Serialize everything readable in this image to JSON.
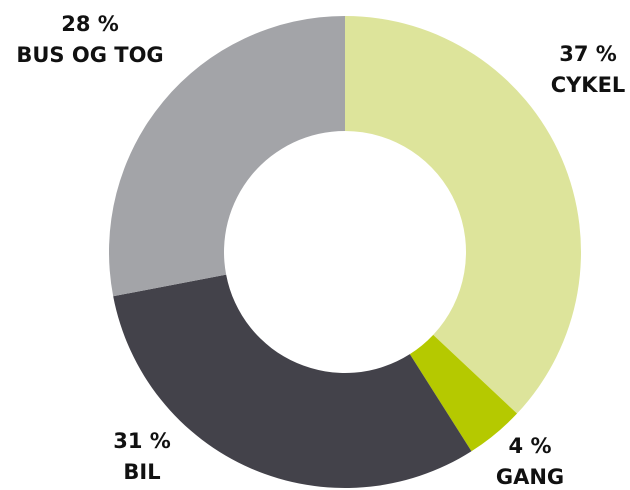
{
  "chart_data": {
    "type": "donut",
    "categories": [
      "CYKEL",
      "GANG",
      "BIL",
      "BUS OG TOG"
    ],
    "values": [
      37,
      4,
      31,
      28
    ],
    "value_labels": [
      "37 %",
      "4 %",
      "31 %",
      "28 %"
    ],
    "colors": [
      "#dde49b",
      "#b5c900",
      "#43424a",
      "#a3a4a8"
    ]
  }
}
